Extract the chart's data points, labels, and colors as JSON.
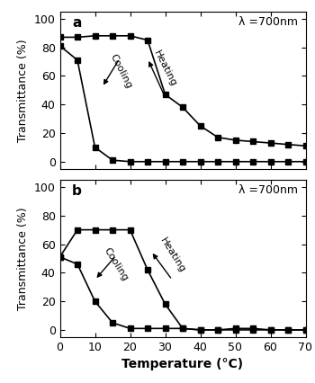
{
  "panel_a": {
    "heating_x": [
      0,
      5,
      10,
      15,
      20,
      25,
      30,
      35,
      40,
      45,
      50,
      55,
      60,
      65,
      70
    ],
    "heating_y": [
      87,
      87,
      88,
      88,
      88,
      85,
      47,
      38,
      25,
      17,
      15,
      14,
      13,
      12,
      11
    ],
    "cooling_x": [
      0,
      5,
      10,
      15,
      20,
      25,
      30,
      35,
      40,
      45,
      50,
      55,
      60,
      65,
      70
    ],
    "cooling_y": [
      81,
      71,
      10,
      1,
      0,
      0,
      0,
      0,
      0,
      0,
      0,
      0,
      0,
      0,
      0
    ],
    "label": "a",
    "annotation_wavelength": "λ =700nm",
    "ylim": [
      -5,
      105
    ],
    "yticks": [
      0,
      20,
      40,
      60,
      80,
      100
    ]
  },
  "panel_b": {
    "heating_x": [
      0,
      5,
      10,
      15,
      20,
      25,
      30,
      35,
      40,
      45,
      50,
      55,
      60,
      65,
      70
    ],
    "heating_y": [
      51,
      70,
      70,
      70,
      70,
      42,
      18,
      1,
      0,
      0,
      1,
      1,
      0,
      0,
      0
    ],
    "cooling_x": [
      0,
      5,
      10,
      15,
      20,
      25,
      30,
      35,
      40,
      45,
      50,
      55,
      60,
      65,
      70
    ],
    "cooling_y": [
      51,
      46,
      20,
      5,
      1,
      1,
      1,
      1,
      0,
      0,
      0,
      0,
      0,
      0,
      0
    ],
    "label": "b",
    "annotation_wavelength": "λ =700nm",
    "ylim": [
      -5,
      105
    ],
    "yticks": [
      0,
      20,
      40,
      60,
      80,
      100
    ]
  },
  "xlabel": "Temperature (°C)",
  "ylabel": "Transmittance (%)",
  "xlim": [
    0,
    70
  ],
  "xticks": [
    0,
    10,
    20,
    30,
    40,
    50,
    60,
    70
  ],
  "background_color": "#ffffff",
  "line_color": "#000000",
  "marker_square": "s",
  "marker_size": 4.5,
  "line_width": 1.2
}
